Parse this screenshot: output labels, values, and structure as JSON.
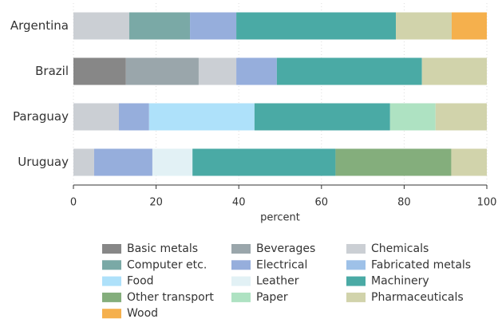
{
  "chart_data": {
    "type": "stacked_barh",
    "x_label": "percent",
    "categories": [
      "Argentina",
      "Brazil",
      "Paraguay",
      "Uruguay"
    ],
    "series": [
      {
        "name": "Basic metals",
        "color": "#878787",
        "values": [
          null,
          12.7,
          null,
          null
        ]
      },
      {
        "name": "Beverages",
        "color": "#9aa6ab",
        "values": [
          null,
          17.6,
          null,
          null
        ]
      },
      {
        "name": "Chemicals",
        "color": "#cbcfd4",
        "values": [
          13.5,
          9.1,
          11.0,
          5.0
        ]
      },
      {
        "name": "Computer etc.",
        "color": "#7aa9a6",
        "values": [
          14.7,
          null,
          null,
          null
        ]
      },
      {
        "name": "Electrical",
        "color": "#96aedc",
        "values": [
          11.2,
          9.8,
          7.3,
          14.1
        ]
      },
      {
        "name": "Fabricated metals",
        "color": "#9ec1e8",
        "values": [
          null,
          null,
          null,
          null
        ]
      },
      {
        "name": "Food",
        "color": "#aee1fa",
        "values": [
          null,
          null,
          25.5,
          null
        ]
      },
      {
        "name": "Leather",
        "color": "#e2f1f5",
        "values": [
          null,
          null,
          null,
          9.7
        ]
      },
      {
        "name": "Machinery",
        "color": "#4aaaa5",
        "values": [
          38.6,
          35.1,
          32.8,
          34.6
        ]
      },
      {
        "name": "Other transport",
        "color": "#84ae7c",
        "values": [
          null,
          null,
          null,
          28.0
        ]
      },
      {
        "name": "Paper",
        "color": "#aee2c2",
        "values": [
          null,
          null,
          11.0,
          null
        ]
      },
      {
        "name": "Pharmaceuticals",
        "color": "#d1d3ab",
        "values": [
          13.5,
          15.7,
          12.4,
          8.6
        ]
      },
      {
        "name": "Wood",
        "color": "#f5b04d",
        "values": [
          8.5,
          null,
          null,
          null
        ]
      }
    ],
    "xlim": [
      0,
      100
    ],
    "xticks": [
      0,
      20,
      40,
      60,
      80,
      100
    ],
    "grid": true
  }
}
